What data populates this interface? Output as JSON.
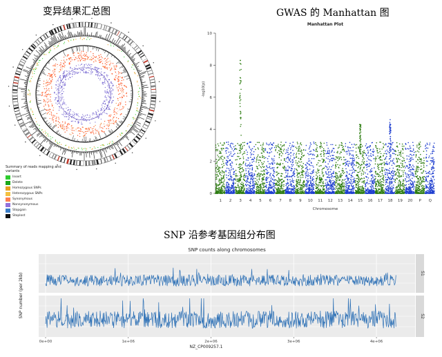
{
  "captions": {
    "circos": "变异结果汇总图",
    "gwas": "GWAS 的 Manhattan 图",
    "snp": "SNP 沿参考基因组分布图"
  },
  "circos_legend": {
    "title": "Summary of reads mapping and variants",
    "items": [
      {
        "label": "Insert",
        "color": "#2ecc2e"
      },
      {
        "label": "Delete",
        "color": "#1aa81a"
      },
      {
        "label": "Homozygous SNPs",
        "color": "#e8a020"
      },
      {
        "label": "Heterozygous SNPs",
        "color": "#f4c040"
      },
      {
        "label": "Synonymous",
        "color": "#ff7f50"
      },
      {
        "label": "Nonsynonymous",
        "color": "#9370db"
      },
      {
        "label": "Stopgain",
        "color": "#3a7dc8"
      },
      {
        "label": "Stoplost",
        "color": "#111111"
      }
    ]
  },
  "chart_data": [
    {
      "type": "scatter",
      "title": "Manhattan Plot",
      "xlabel": "Chromosome",
      "ylabel": "-log10(p)",
      "ylim": [
        0,
        10
      ],
      "yticks": [
        0,
        2,
        4,
        6,
        8,
        10
      ],
      "categories": [
        "1",
        "2",
        "3",
        "4",
        "5",
        "6",
        "7",
        "8",
        "9",
        "10",
        "11",
        "12",
        "13",
        "14",
        "15",
        "16",
        "17",
        "18",
        "19",
        "20",
        "P",
        "Q"
      ],
      "series_colors": [
        "#2e7d12",
        "#1f3fcf"
      ],
      "peaks": [
        {
          "chromosome": "3",
          "max_logp": 8.3
        },
        {
          "chromosome": "15",
          "max_logp": 4.3
        },
        {
          "chromosome": "18",
          "max_logp": 4.6
        }
      ],
      "typical_max_logp": 3.2
    },
    {
      "type": "line",
      "title": "SNP counts along chromosomes",
      "xlabel": "NZ_CP009257.1",
      "ylabel": "SNP number (per 2kb)",
      "xlim": [
        0,
        4300000
      ],
      "x_tick_labels": [
        "0e+00",
        "1e+06",
        "2e+06",
        "3e+06",
        "4e+06"
      ],
      "x_ticks": [
        0,
        1000000,
        2000000,
        3000000,
        4000000
      ],
      "series": [
        {
          "name": "S1",
          "mean": 4,
          "max": 14
        },
        {
          "name": "S2",
          "mean": 9,
          "max": 22
        }
      ],
      "line_color": "#2b6fb5"
    }
  ]
}
